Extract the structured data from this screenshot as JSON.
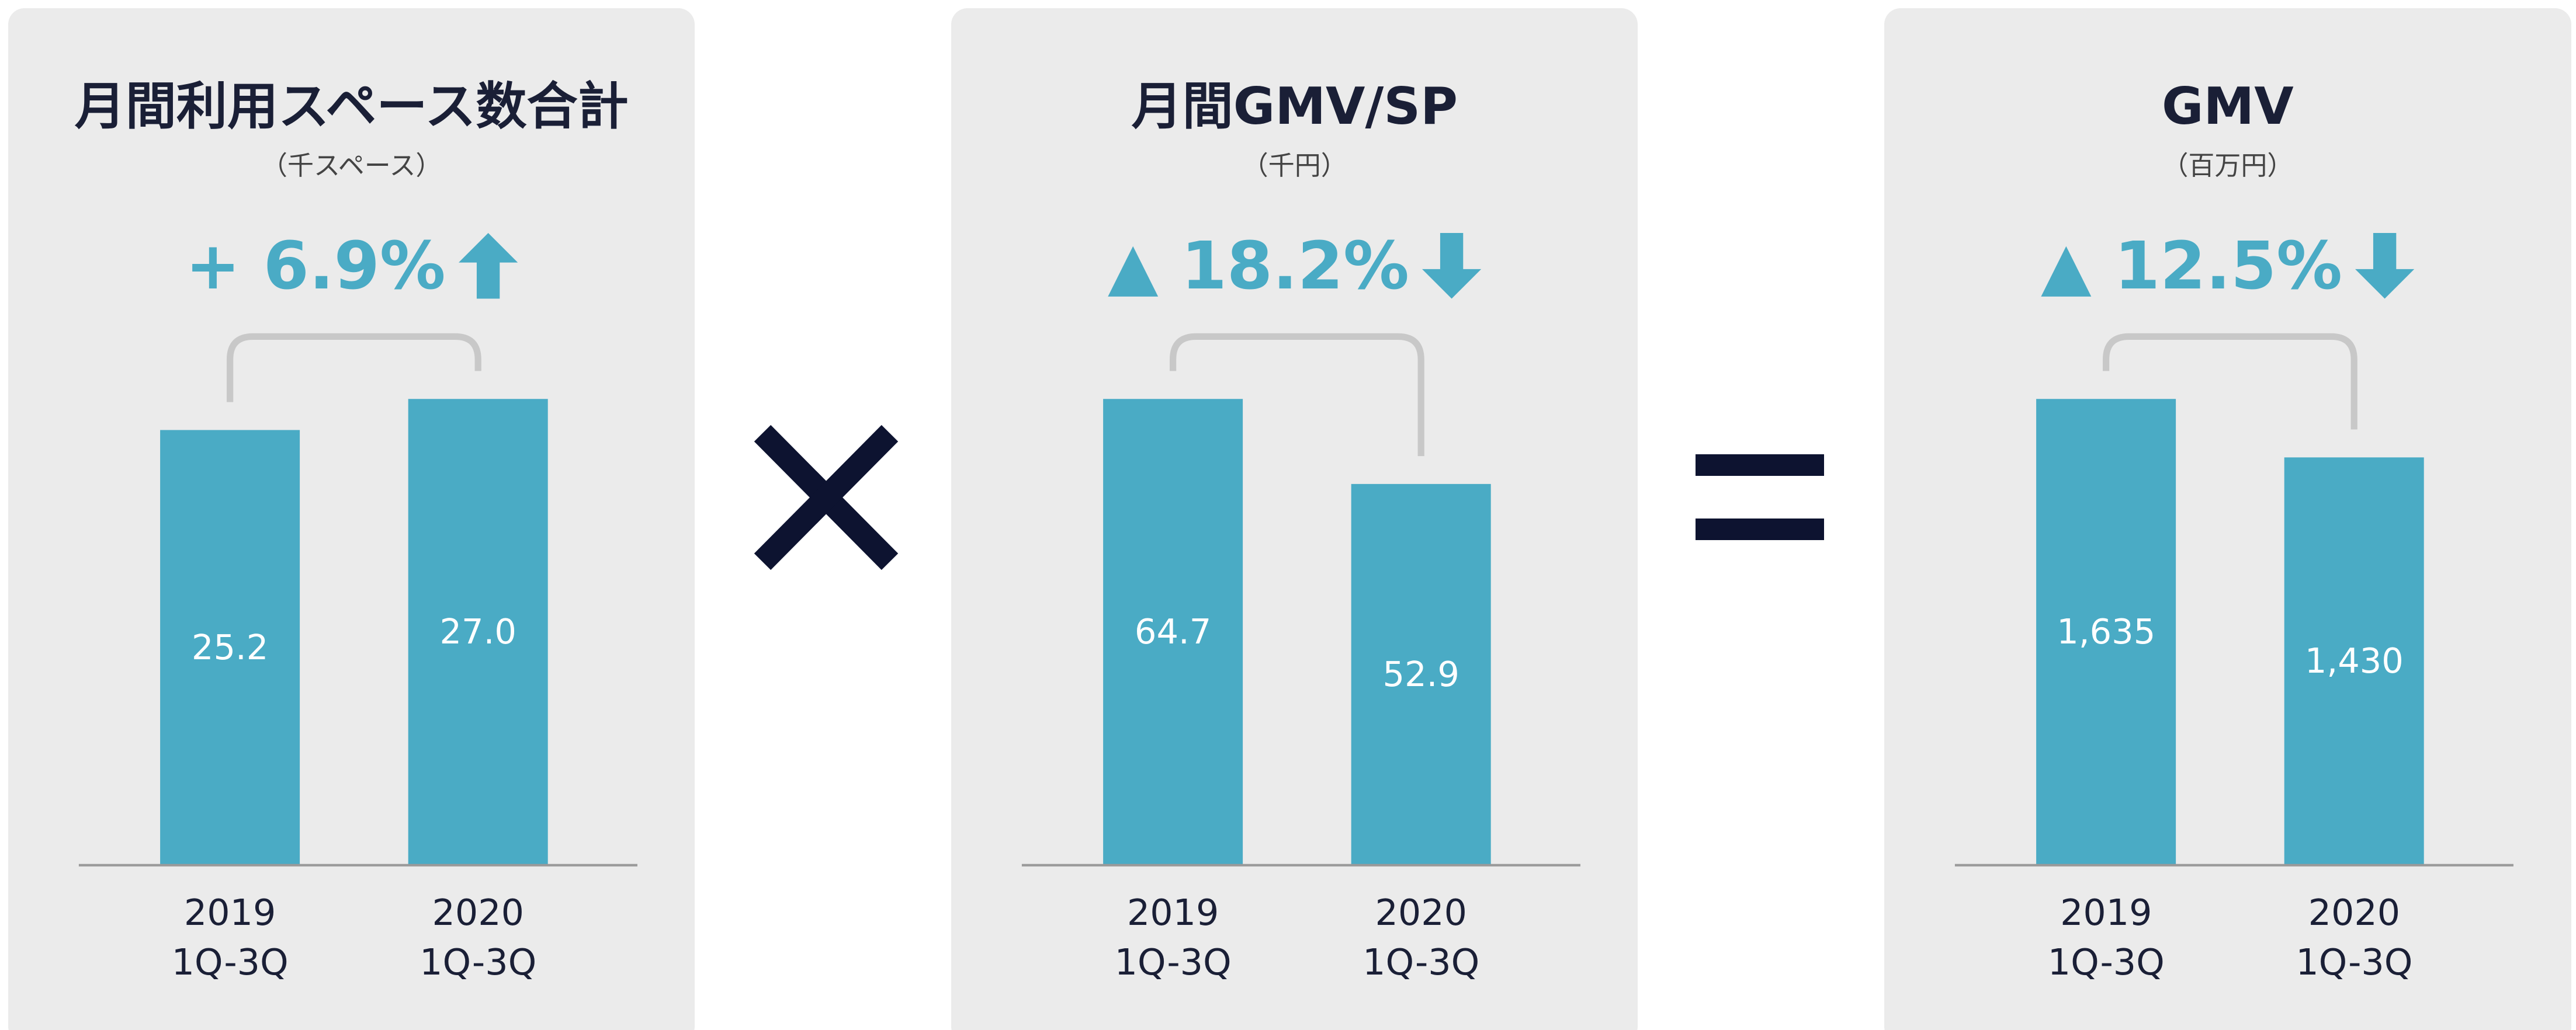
{
  "chart_data": [
    {
      "type": "bar",
      "title": "月間利用スペース数合計",
      "subtitle": "（千スペース）",
      "annotation": "+ 6.9%",
      "categories": [
        "2019 1Q-3Q",
        "2020 1Q-3Q"
      ],
      "values": [
        25.2,
        27.0
      ],
      "value_labels": [
        "25.2",
        "27.0"
      ],
      "color": "#4aabc5"
    },
    {
      "type": "bar",
      "title": "月間GMV/SP",
      "subtitle": "（千円）",
      "annotation": "▲ 18.2%",
      "categories": [
        "2019 1Q-3Q",
        "2020 1Q-3Q"
      ],
      "values": [
        64.7,
        52.9
      ],
      "color": "#4aabc5"
    },
    {
      "type": "bar",
      "title": "GMV",
      "subtitle": "（百万円）",
      "annotation": "▲ 12.5%",
      "categories": [
        "2019 1Q-3Q",
        "2020 1Q-3Q"
      ],
      "values": [
        1635,
        1430
      ],
      "value_labels": [
        "1,635",
        "1,430"
      ],
      "color": "#4aabc5"
    }
  ]
}
